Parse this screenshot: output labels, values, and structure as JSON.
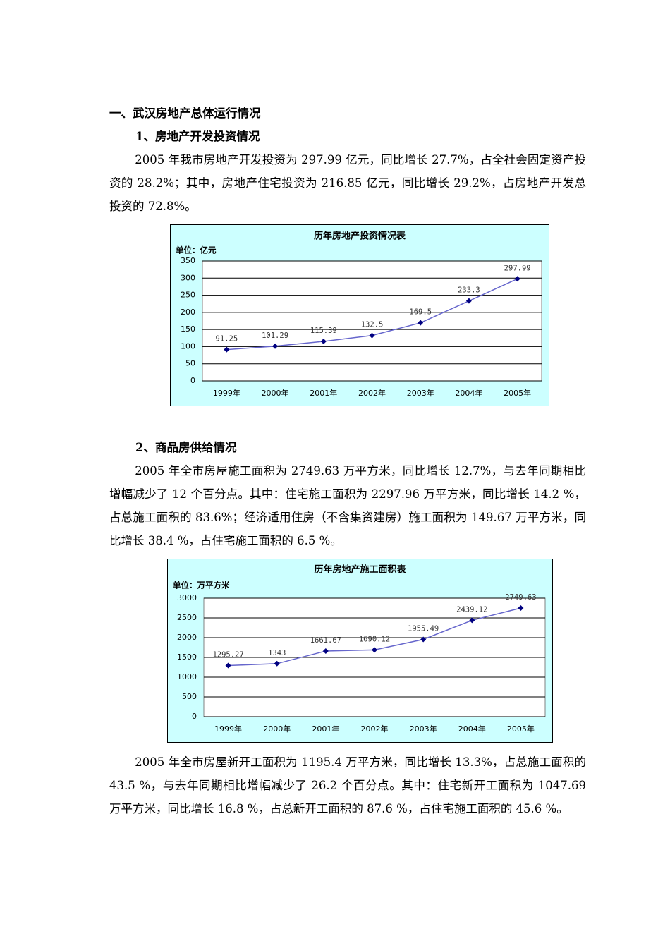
{
  "document": {
    "heading": "一、武汉房地产总体运行情况",
    "section1": "1、房地产开发投资情况",
    "paragraph1": "2005 年我市房地产开发投资为 297.99 亿元，同比增长 27.7%，占全社会固定资产投资的 28.2%；其中，房地产住宅投资为 216.85 亿元，同比增长 29.2%，占房地产开发总投资的 72.8%。",
    "section2": "2、商品房供给情况",
    "paragraph2": "2005 年全市房屋施工面积为 2749.63 万平方米，同比增长 12.7%，与去年同期相比增幅减少了 12 个百分点。其中：住宅施工面积为 2297.96 万平方米，同比增长 14.2 %，占总施工面积的 83.6%；经济适用住房（不含集资建房）施工面积为 149.67 万平方米，同比增长 38.4 %，占住宅施工面积的 6.5 %。",
    "paragraph3": "2005 年全市房屋新开工面积为 1195.4 万平方米，同比增长 13.3%，占总施工面积的 43.5 %，与去年同期相比增幅减少了 26.2 个百分点。其中：住宅新开工面积为 1047.69 万平方米，同比增长 16.8 %，占总新开工面积的 87.6 %，占住宅施工面积的 45.6 %。"
  },
  "chart_data": [
    {
      "type": "line",
      "title": "历年房地产投资情况表",
      "y_label": "单位：亿元",
      "categories": [
        "1999年",
        "2000年",
        "2001年",
        "2002年",
        "2003年",
        "2004年",
        "2005年"
      ],
      "values": [
        91.25,
        101.29,
        115.39,
        132.5,
        169.5,
        233.3,
        297.99
      ],
      "color": "#000080",
      "line_color": "#6666cc",
      "ylim": [
        0,
        350
      ],
      "yticks": [
        0,
        50,
        100,
        150,
        200,
        250,
        300,
        350
      ],
      "grid": true
    },
    {
      "type": "line",
      "title": "历年房地产施工面积表",
      "y_label": "单位：万平方米",
      "categories": [
        "1999年",
        "2000年",
        "2001年",
        "2002年",
        "2003年",
        "2004年",
        "2005年"
      ],
      "values": [
        1295.27,
        1343,
        1661.67,
        1690.12,
        1955.49,
        2439.12,
        2749.63
      ],
      "color": "#000080",
      "line_color": "#6666cc",
      "ylim": [
        0,
        3000
      ],
      "yticks": [
        0,
        500,
        1000,
        1500,
        2000,
        2500,
        3000
      ],
      "grid": true
    }
  ]
}
